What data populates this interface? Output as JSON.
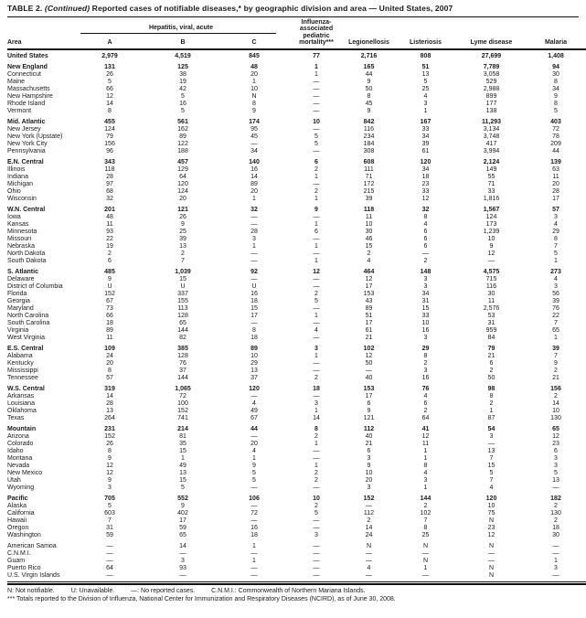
{
  "title": {
    "label": "TABLE 2.",
    "continued": "(Continued)",
    "text": "Reported cases of notifiable diseases,* by geographic division and area — United States, 2007"
  },
  "table": {
    "header": {
      "area": "Area",
      "hepatitis_group": "Hepatitis, viral, acute",
      "hepatitis_subcols": [
        "A",
        "B",
        "C"
      ],
      "influenza": "Influenza-\nassociated\npediatric\nmortality***",
      "legionellosis": "Legionellosis",
      "listeriosis": "Listeriosis",
      "lyme": "Lyme disease",
      "malaria": "Malaria"
    },
    "rows": [
      {
        "area": "United States",
        "bold": true,
        "gap": false,
        "values": [
          "2,979",
          "4,519",
          "845",
          "77",
          "2,716",
          "808",
          "27,699",
          "1,408"
        ]
      },
      {
        "area": "New England",
        "bold": true,
        "gap": true,
        "values": [
          "131",
          "125",
          "48",
          "1",
          "165",
          "51",
          "7,789",
          "94"
        ]
      },
      {
        "area": "Connecticut",
        "bold": false,
        "gap": false,
        "values": [
          "26",
          "38",
          "20",
          "1",
          "44",
          "13",
          "3,058",
          "30"
        ]
      },
      {
        "area": "Maine",
        "bold": false,
        "gap": false,
        "values": [
          "5",
          "19",
          "1",
          "—",
          "9",
          "5",
          "529",
          "8"
        ]
      },
      {
        "area": "Massachusetts",
        "bold": false,
        "gap": false,
        "values": [
          "66",
          "42",
          "10",
          "—",
          "50",
          "25",
          "2,988",
          "34"
        ]
      },
      {
        "area": "New Hampshire",
        "bold": false,
        "gap": false,
        "values": [
          "12",
          "5",
          "N",
          "—",
          "8",
          "4",
          "899",
          "9"
        ]
      },
      {
        "area": "Rhode Island",
        "bold": false,
        "gap": false,
        "values": [
          "14",
          "16",
          "8",
          "—",
          "45",
          "3",
          "177",
          "8"
        ]
      },
      {
        "area": "Vermont",
        "bold": false,
        "gap": false,
        "values": [
          "8",
          "5",
          "9",
          "—",
          "9",
          "1",
          "138",
          "5"
        ]
      },
      {
        "area": "Mid. Atlantic",
        "bold": true,
        "gap": true,
        "values": [
          "455",
          "561",
          "174",
          "10",
          "842",
          "167",
          "11,293",
          "403"
        ]
      },
      {
        "area": "New Jersey",
        "bold": false,
        "gap": false,
        "values": [
          "124",
          "162",
          "95",
          "—",
          "116",
          "33",
          "3,134",
          "72"
        ]
      },
      {
        "area": "New York (Upstate)",
        "bold": false,
        "gap": false,
        "values": [
          "79",
          "89",
          "45",
          "5",
          "234",
          "34",
          "3,748",
          "78"
        ]
      },
      {
        "area": "New York City",
        "bold": false,
        "gap": false,
        "values": [
          "156",
          "122",
          "—",
          "5",
          "184",
          "39",
          "417",
          "209"
        ]
      },
      {
        "area": "Pennsylvania",
        "bold": false,
        "gap": false,
        "values": [
          "96",
          "188",
          "34",
          "—",
          "308",
          "61",
          "3,994",
          "44"
        ]
      },
      {
        "area": "E.N. Central",
        "bold": true,
        "gap": true,
        "values": [
          "343",
          "457",
          "140",
          "6",
          "608",
          "120",
          "2,124",
          "139"
        ]
      },
      {
        "area": "Illinois",
        "bold": false,
        "gap": false,
        "values": [
          "118",
          "129",
          "16",
          "2",
          "111",
          "34",
          "149",
          "63"
        ]
      },
      {
        "area": "Indiana",
        "bold": false,
        "gap": false,
        "values": [
          "28",
          "64",
          "14",
          "1",
          "71",
          "18",
          "55",
          "11"
        ]
      },
      {
        "area": "Michigan",
        "bold": false,
        "gap": false,
        "values": [
          "97",
          "120",
          "89",
          "—",
          "172",
          "23",
          "71",
          "20"
        ]
      },
      {
        "area": "Ohio",
        "bold": false,
        "gap": false,
        "values": [
          "68",
          "124",
          "20",
          "2",
          "215",
          "33",
          "33",
          "28"
        ]
      },
      {
        "area": "Wisconsin",
        "bold": false,
        "gap": false,
        "values": [
          "32",
          "20",
          "1",
          "1",
          "39",
          "12",
          "1,816",
          "17"
        ]
      },
      {
        "area": "W.N. Central",
        "bold": true,
        "gap": true,
        "values": [
          "201",
          "121",
          "32",
          "9",
          "118",
          "32",
          "1,567",
          "57"
        ]
      },
      {
        "area": "Iowa",
        "bold": false,
        "gap": false,
        "values": [
          "48",
          "26",
          "—",
          "—",
          "11",
          "8",
          "124",
          "3"
        ]
      },
      {
        "area": "Kansas",
        "bold": false,
        "gap": false,
        "values": [
          "11",
          "9",
          "—",
          "1",
          "10",
          "4",
          "173",
          "4"
        ]
      },
      {
        "area": "Minnesota",
        "bold": false,
        "gap": false,
        "values": [
          "93",
          "25",
          "28",
          "6",
          "30",
          "6",
          "1,239",
          "29"
        ]
      },
      {
        "area": "Missouri",
        "bold": false,
        "gap": false,
        "values": [
          "22",
          "39",
          "3",
          "—",
          "46",
          "6",
          "10",
          "8"
        ]
      },
      {
        "area": "Nebraska",
        "bold": false,
        "gap": false,
        "values": [
          "19",
          "13",
          "1",
          "1",
          "15",
          "6",
          "9",
          "7"
        ]
      },
      {
        "area": "North Dakota",
        "bold": false,
        "gap": false,
        "values": [
          "2",
          "2",
          "—",
          "—",
          "2",
          "—",
          "12",
          "5"
        ]
      },
      {
        "area": "South Dakota",
        "bold": false,
        "gap": false,
        "values": [
          "6",
          "7",
          "—",
          "1",
          "4",
          "2",
          "—",
          "1"
        ]
      },
      {
        "area": "S. Atlantic",
        "bold": true,
        "gap": true,
        "values": [
          "485",
          "1,039",
          "92",
          "12",
          "464",
          "148",
          "4,575",
          "273"
        ]
      },
      {
        "area": "Delaware",
        "bold": false,
        "gap": false,
        "values": [
          "9",
          "15",
          "—",
          "—",
          "12",
          "3",
          "715",
          "4"
        ]
      },
      {
        "area": "District of Columbia",
        "bold": false,
        "gap": false,
        "values": [
          "U",
          "U",
          "U",
          "—",
          "17",
          "3",
          "116",
          "3"
        ]
      },
      {
        "area": "Florida",
        "bold": false,
        "gap": false,
        "values": [
          "152",
          "337",
          "16",
          "2",
          "153",
          "34",
          "30",
          "56"
        ]
      },
      {
        "area": "Georgia",
        "bold": false,
        "gap": false,
        "values": [
          "67",
          "155",
          "18",
          "5",
          "43",
          "31",
          "11",
          "39"
        ]
      },
      {
        "area": "Maryland",
        "bold": false,
        "gap": false,
        "values": [
          "73",
          "113",
          "15",
          "—",
          "89",
          "15",
          "2,576",
          "76"
        ]
      },
      {
        "area": "North Carolina",
        "bold": false,
        "gap": false,
        "values": [
          "66",
          "128",
          "17",
          "1",
          "51",
          "33",
          "53",
          "22"
        ]
      },
      {
        "area": "South Carolina",
        "bold": false,
        "gap": false,
        "values": [
          "18",
          "65",
          "—",
          "—",
          "17",
          "10",
          "31",
          "7"
        ]
      },
      {
        "area": "Virginia",
        "bold": false,
        "gap": false,
        "values": [
          "89",
          "144",
          "8",
          "4",
          "61",
          "16",
          "959",
          "65"
        ]
      },
      {
        "area": "West Virginia",
        "bold": false,
        "gap": false,
        "values": [
          "11",
          "82",
          "18",
          "—",
          "21",
          "3",
          "84",
          "1"
        ]
      },
      {
        "area": "E.S. Central",
        "bold": true,
        "gap": true,
        "values": [
          "109",
          "385",
          "89",
          "3",
          "102",
          "29",
          "79",
          "39"
        ]
      },
      {
        "area": "Alabama",
        "bold": false,
        "gap": false,
        "values": [
          "24",
          "128",
          "10",
          "1",
          "12",
          "8",
          "21",
          "7"
        ]
      },
      {
        "area": "Kentucky",
        "bold": false,
        "gap": false,
        "values": [
          "20",
          "76",
          "29",
          "—",
          "50",
          "2",
          "6",
          "9"
        ]
      },
      {
        "area": "Mississippi",
        "bold": false,
        "gap": false,
        "values": [
          "8",
          "37",
          "13",
          "—",
          "—",
          "3",
          "2",
          "2"
        ]
      },
      {
        "area": "Tennessee",
        "bold": false,
        "gap": false,
        "values": [
          "57",
          "144",
          "37",
          "2",
          "40",
          "16",
          "50",
          "21"
        ]
      },
      {
        "area": "W.S. Central",
        "bold": true,
        "gap": true,
        "values": [
          "319",
          "1,065",
          "120",
          "18",
          "153",
          "76",
          "98",
          "156"
        ]
      },
      {
        "area": "Arkansas",
        "bold": false,
        "gap": false,
        "values": [
          "14",
          "72",
          "—",
          "—",
          "17",
          "4",
          "8",
          "2"
        ]
      },
      {
        "area": "Louisiana",
        "bold": false,
        "gap": false,
        "values": [
          "28",
          "100",
          "4",
          "3",
          "6",
          "6",
          "2",
          "14"
        ]
      },
      {
        "area": "Oklahoma",
        "bold": false,
        "gap": false,
        "values": [
          "13",
          "152",
          "49",
          "1",
          "9",
          "2",
          "1",
          "10"
        ]
      },
      {
        "area": "Texas",
        "bold": false,
        "gap": false,
        "values": [
          "264",
          "741",
          "67",
          "14",
          "121",
          "64",
          "87",
          "130"
        ]
      },
      {
        "area": "Mountain",
        "bold": true,
        "gap": true,
        "values": [
          "231",
          "214",
          "44",
          "8",
          "112",
          "41",
          "54",
          "65"
        ]
      },
      {
        "area": "Arizona",
        "bold": false,
        "gap": false,
        "values": [
          "152",
          "81",
          "—",
          "2",
          "40",
          "12",
          "3",
          "12"
        ]
      },
      {
        "area": "Colorado",
        "bold": false,
        "gap": false,
        "values": [
          "26",
          "35",
          "20",
          "1",
          "21",
          "11",
          "—",
          "23"
        ]
      },
      {
        "area": "Idaho",
        "bold": false,
        "gap": false,
        "values": [
          "8",
          "15",
          "4",
          "—",
          "6",
          "1",
          "13",
          "6"
        ]
      },
      {
        "area": "Montana",
        "bold": false,
        "gap": false,
        "values": [
          "9",
          "1",
          "1",
          "—",
          "3",
          "1",
          "7",
          "3"
        ]
      },
      {
        "area": "Nevada",
        "bold": false,
        "gap": false,
        "values": [
          "12",
          "49",
          "9",
          "1",
          "9",
          "8",
          "15",
          "3"
        ]
      },
      {
        "area": "New Mexico",
        "bold": false,
        "gap": false,
        "values": [
          "12",
          "13",
          "5",
          "2",
          "10",
          "4",
          "5",
          "5"
        ]
      },
      {
        "area": "Utah",
        "bold": false,
        "gap": false,
        "values": [
          "9",
          "15",
          "5",
          "2",
          "20",
          "3",
          "7",
          "13"
        ]
      },
      {
        "area": "Wyoming",
        "bold": false,
        "gap": false,
        "values": [
          "3",
          "5",
          "—",
          "—",
          "3",
          "1",
          "4",
          "—"
        ]
      },
      {
        "area": "Pacific",
        "bold": true,
        "gap": true,
        "values": [
          "705",
          "552",
          "106",
          "10",
          "152",
          "144",
          "120",
          "182"
        ]
      },
      {
        "area": "Alaska",
        "bold": false,
        "gap": false,
        "values": [
          "5",
          "9",
          "—",
          "2",
          "—",
          "2",
          "10",
          "2"
        ]
      },
      {
        "area": "California",
        "bold": false,
        "gap": false,
        "values": [
          "603",
          "402",
          "72",
          "5",
          "112",
          "102",
          "75",
          "130"
        ]
      },
      {
        "area": "Hawaii",
        "bold": false,
        "gap": false,
        "values": [
          "7",
          "17",
          "—",
          "—",
          "2",
          "7",
          "N",
          "2"
        ]
      },
      {
        "area": "Oregon",
        "bold": false,
        "gap": false,
        "values": [
          "31",
          "59",
          "16",
          "—",
          "14",
          "8",
          "23",
          "18"
        ]
      },
      {
        "area": "Washington",
        "bold": false,
        "gap": false,
        "values": [
          "59",
          "65",
          "18",
          "3",
          "24",
          "25",
          "12",
          "30"
        ]
      },
      {
        "area": "American Samoa",
        "bold": false,
        "gap": true,
        "values": [
          "—",
          "14",
          "1",
          "—",
          "N",
          "N",
          "N",
          "—"
        ]
      },
      {
        "area": "C.N.M.I.",
        "bold": false,
        "gap": false,
        "values": [
          "—",
          "—",
          "—",
          "—",
          "—",
          "—",
          "—",
          "—"
        ]
      },
      {
        "area": "Guam",
        "bold": false,
        "gap": false,
        "values": [
          "—",
          "3",
          "1",
          "—",
          "—",
          "N",
          "—",
          "1"
        ]
      },
      {
        "area": "Puerto Rico",
        "bold": false,
        "gap": false,
        "values": [
          "64",
          "93",
          "—",
          "—",
          "4",
          "1",
          "N",
          "3"
        ]
      },
      {
        "area": "U.S. Virgin Islands",
        "bold": false,
        "gap": false,
        "values": [
          "—",
          "—",
          "—",
          "—",
          "—",
          "—",
          "N",
          "—"
        ]
      }
    ]
  },
  "footnotes": {
    "legend": [
      "N: Not notifiable.",
      "U: Unavailable.",
      "—: No reported cases.",
      "C.N.M.I.: Commonwealth of Northern Mariana Islands."
    ],
    "note": "*** Totals reported to the Division of Influenza, National Center for Immunization and Respiratory Diseases (NCIRD), as of June 30, 2008."
  }
}
